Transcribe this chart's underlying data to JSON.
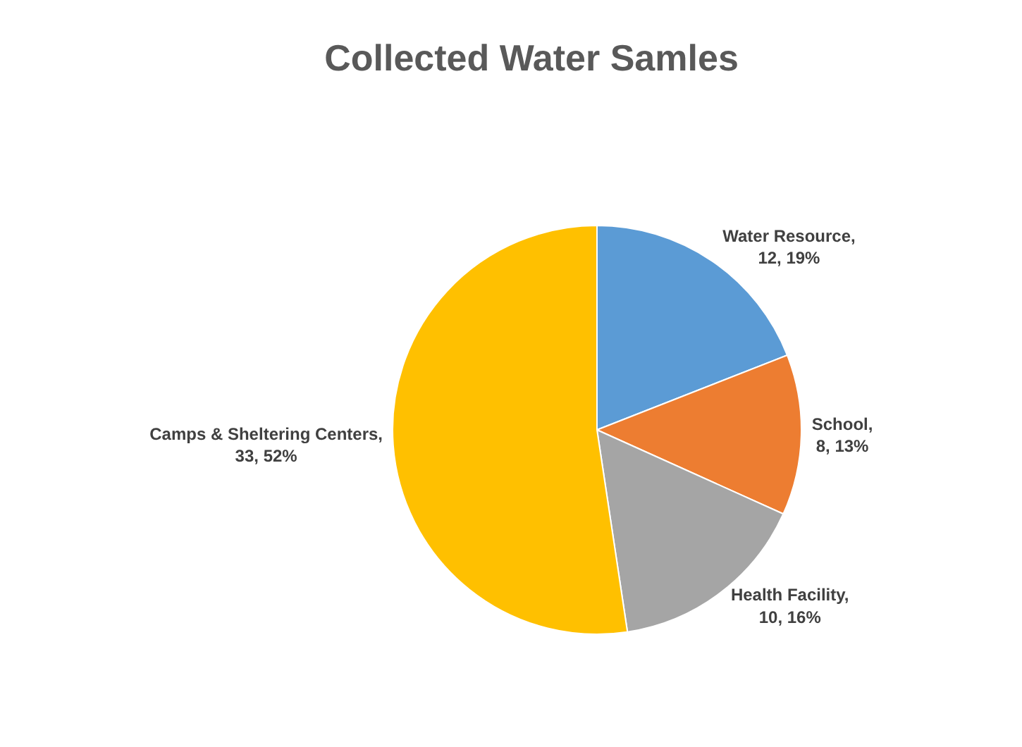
{
  "chart_data": {
    "type": "pie",
    "title": "Collected Water Samles",
    "categories": [
      "Water Resource",
      "School",
      "Health Facility",
      "Camps & Sheltering Centers"
    ],
    "values": [
      12,
      8,
      10,
      33
    ],
    "value_labels": [
      ",\n12, 19%",
      ",\n8, 13%",
      ",\n10, 16%",
      ",\n33, 52%"
    ],
    "colors": [
      "#5b9bd5",
      "#ed7d31",
      "#a5a5a5",
      "#ffc000"
    ],
    "legend": false
  }
}
